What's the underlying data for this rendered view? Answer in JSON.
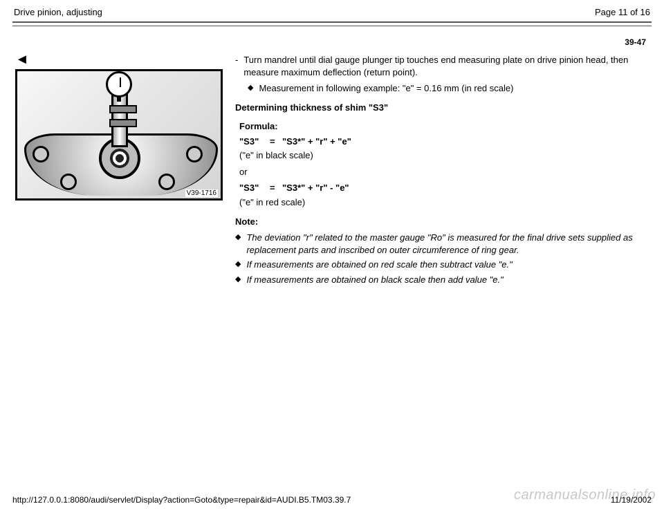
{
  "header": {
    "title": "Drive pinion, adjusting",
    "page_indicator": "Page 11 of 16"
  },
  "page_reference": "39-47",
  "figure": {
    "caption": "V39-1716"
  },
  "body": {
    "step1": "Turn mandrel until dial gauge plunger tip touches end measuring plate on drive pinion head, then measure maximum deflection (return point).",
    "step1_sub": "Measurement in following example: \"e\" = 0.16 mm (in red scale)",
    "section_heading": "Determining thickness of shim \"S3\"",
    "formula": {
      "label": "Formula:",
      "row1_lhs": "\"S3\"",
      "row1_eq": "=",
      "row1_rhs": "\"S3*\" + \"r\" + \"e\"",
      "row1_paren": "(\"e\" in black scale)",
      "or": "or",
      "row2_lhs": "\"S3\"",
      "row2_eq": "=",
      "row2_rhs": "\"S3*\" + \"r\" - \"e\"",
      "row2_paren": "(\"e\" in red scale)"
    },
    "note_heading": "Note:",
    "notes": [
      "The deviation \"r\" related to the master gauge \"Ro\" is measured for the final drive sets supplied as replacement parts and inscribed on outer circumference of ring gear.",
      "If measurements are obtained on red scale then subtract value \"e.\"",
      "If measurements are obtained on black scale then add value \"e.\""
    ]
  },
  "footer": {
    "url": "http://127.0.0.1:8080/audi/servlet/Display?action=Goto&type=repair&id=AUDI.B5.TM03.39.7",
    "date": "11/19/2002",
    "watermark": "carmanualsonline.info"
  },
  "colors": {
    "text": "#000000",
    "rule": "#555555",
    "watermark": "#c7c7c7",
    "background": "#ffffff"
  }
}
